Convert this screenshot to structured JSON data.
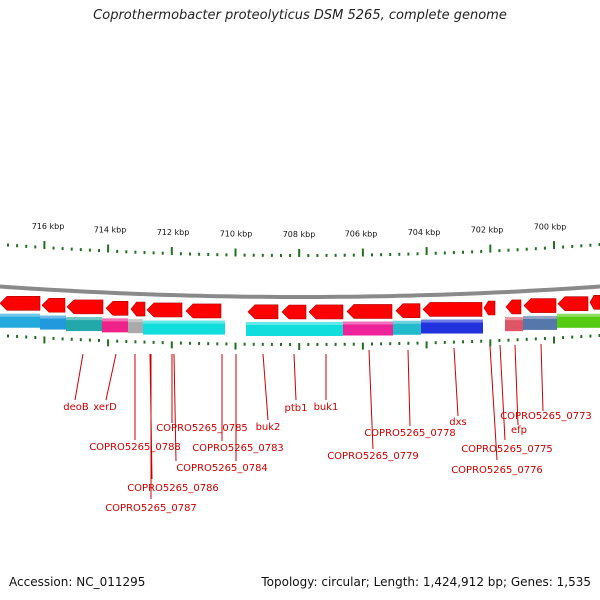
{
  "title": "Coprothermobacter proteolyticus DSM 5265, complete genome",
  "footer": {
    "accession": "Accession: NC_011295",
    "summary": "Topology: circular; Length: 1,424,912 bp; Genes: 1,535"
  },
  "colors": {
    "backbone": "#8a8a8a",
    "cds": "#ff0000",
    "tick": "#207020",
    "gene_label": "#cc0000"
  },
  "kbp_ticks": [
    "716 kbp",
    "714 kbp",
    "712 kbp",
    "710 kbp",
    "708 kbp",
    "706 kbp",
    "704 kbp",
    "702 kbp",
    "700 kbp"
  ],
  "gene_labels": [
    "deoB",
    "xerD",
    "COPRO5265_0788",
    "COPRO5265_0786",
    "COPRO5265_0787",
    "COPRO5265_0785",
    "COPRO5265_0784",
    "COPRO5265_0783",
    "buk2",
    "ptb1",
    "buk1",
    "COPRO5265_0779",
    "COPRO5265_0778",
    "dxs",
    "COPRO5265_0776",
    "COPRO5265_0775",
    "efp",
    "COPRO5265_0773"
  ]
}
